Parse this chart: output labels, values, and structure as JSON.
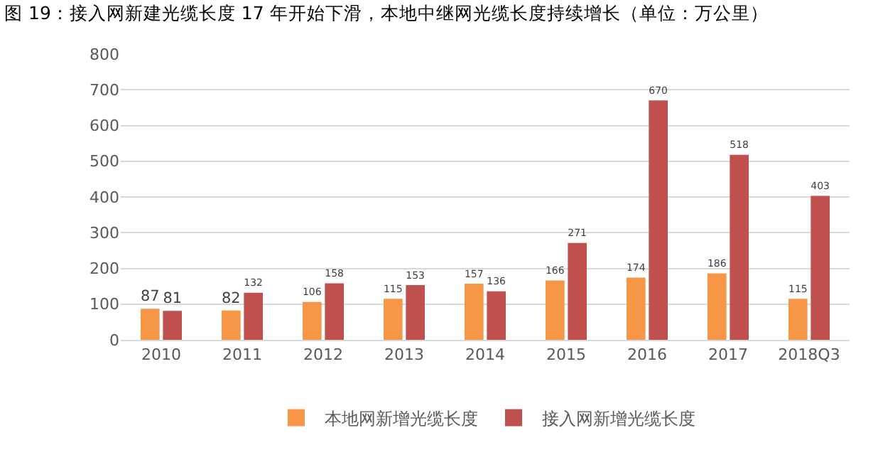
{
  "chart_data": {
    "type": "bar",
    "title": "图 19：接入网新建光缆长度 17 年开始下滑，本地中继网光缆长度持续增长（单位：万公里）",
    "categories": [
      "2010",
      "2011",
      "2012",
      "2013",
      "2014",
      "2015",
      "2016",
      "2017",
      "2018Q3"
    ],
    "series": [
      {
        "name": "本地网新增光缆长度",
        "color": "#f79646",
        "values": [
          87,
          82,
          106,
          115,
          157,
          166,
          174,
          186,
          115
        ]
      },
      {
        "name": "接入网新增光缆长度",
        "color": "#c0504d",
        "values": [
          81,
          132,
          158,
          153,
          136,
          271,
          670,
          518,
          403
        ]
      }
    ],
    "ylim": [
      0,
      800
    ],
    "yticks": [
      0,
      100,
      200,
      300,
      400,
      500,
      600,
      700,
      800
    ],
    "grid": "y",
    "legend": "bottom",
    "data_labels": true
  }
}
